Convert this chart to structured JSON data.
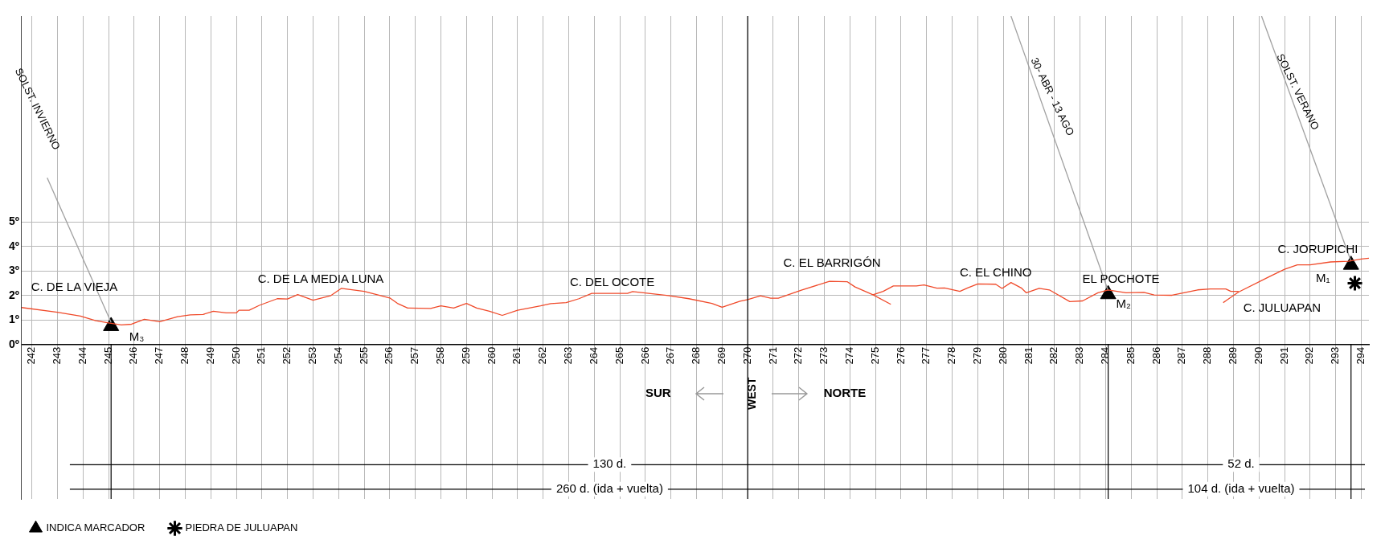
{
  "chart_data": {
    "type": "line",
    "xlim": [
      241.6,
      294.3
    ],
    "ylim": [
      -6.3,
      13.4
    ],
    "xticks": [
      242,
      243,
      244,
      245,
      246,
      247,
      248,
      249,
      250,
      251,
      252,
      253,
      254,
      255,
      256,
      257,
      258,
      259,
      260,
      261,
      262,
      263,
      264,
      265,
      266,
      267,
      268,
      269,
      270,
      271,
      272,
      273,
      274,
      275,
      276,
      277,
      278,
      279,
      280,
      281,
      282,
      283,
      284,
      285,
      286,
      287,
      288,
      289,
      290,
      291,
      292,
      293,
      294
    ],
    "yticks": [
      {
        "value": 0,
        "label": "0º"
      },
      {
        "value": 1,
        "label": "1º"
      },
      {
        "value": 2,
        "label": "2º"
      },
      {
        "value": 3,
        "label": "3º"
      },
      {
        "value": 4,
        "label": "4º"
      },
      {
        "value": 5,
        "label": "5º"
      }
    ],
    "grid": true,
    "legend": "bottom left",
    "series": [
      {
        "color": "#f04a2a",
        "x": [
          241.6,
          243.0,
          243.9,
          244.5,
          245.0,
          245.5,
          245.9,
          246.4,
          247.0,
          247.7,
          248.2,
          248.7,
          249.1,
          249.6,
          250.0,
          250.1,
          250.5,
          250.9,
          251.6,
          252.0,
          252.4,
          253.0,
          253.7,
          254.1,
          255.0,
          256.0,
          256.3,
          256.7,
          257.6,
          258.0,
          258.5,
          259.0,
          259.4,
          259.9,
          260.4,
          261.0,
          261.9,
          262.3,
          262.9,
          263.4,
          263.9,
          265.3,
          265.5,
          266.9,
          267.7,
          268.6,
          269.0,
          269.7,
          270.0,
          270.5,
          270.9,
          271.2,
          272.1,
          273.2,
          273.9,
          274.2,
          274.9,
          275.6
        ],
        "values": [
          1.51,
          1.32,
          1.16,
          0.97,
          0.88,
          0.8,
          0.83,
          1.03,
          0.93,
          1.14,
          1.21,
          1.23,
          1.36,
          1.29,
          1.29,
          1.4,
          1.4,
          1.6,
          1.87,
          1.86,
          2.04,
          1.81,
          2.0,
          2.29,
          2.17,
          1.9,
          1.68,
          1.49,
          1.47,
          1.58,
          1.49,
          1.68,
          1.49,
          1.36,
          1.19,
          1.4,
          1.58,
          1.67,
          1.71,
          1.87,
          2.09,
          2.09,
          2.16,
          2.0,
          1.87,
          1.68,
          1.52,
          1.77,
          1.83,
          1.99,
          1.89,
          1.89,
          2.22,
          2.58,
          2.56,
          2.35,
          2.03,
          1.64
        ]
      },
      {
        "color": "#f04a2a",
        "x": [
          274.9,
          275.3,
          275.7,
          276.6,
          276.9,
          277.4,
          277.7,
          278.3,
          278.6,
          279.0,
          279.7,
          279.95,
          280.3,
          280.7,
          280.9,
          281.4,
          281.8,
          282.6,
          283.1,
          283.7,
          284.1,
          284.8,
          285.5,
          285.9,
          286.6,
          287.6,
          288.1,
          288.7,
          288.9,
          289.2
        ],
        "values": [
          2.03,
          2.17,
          2.39,
          2.39,
          2.43,
          2.3,
          2.31,
          2.17,
          2.31,
          2.47,
          2.46,
          2.29,
          2.53,
          2.31,
          2.11,
          2.29,
          2.23,
          1.75,
          1.78,
          2.11,
          2.23,
          2.11,
          2.13,
          2.02,
          2.01,
          2.23,
          2.27,
          2.27,
          2.17,
          2.17
        ]
      },
      {
        "color": "#f04a2a",
        "x": [
          288.6,
          289.2,
          290.4,
          291.0,
          291.5,
          292.0,
          292.8,
          293.5,
          294.0,
          294.3
        ],
        "values": [
          1.71,
          2.14,
          2.77,
          3.07,
          3.25,
          3.25,
          3.37,
          3.4,
          3.49,
          3.52
        ]
      },
      {
        "color": "#a0a0a0",
        "x": [
          245.1,
          242.6
        ],
        "values": [
          0.9,
          6.8
        ]
      },
      {
        "color": "#a0a0a0",
        "x": [
          284.1,
          280.3
        ],
        "values": [
          2.2,
          13.4
        ]
      },
      {
        "color": "#a0a0a0",
        "x": [
          293.6,
          290.1
        ],
        "values": [
          3.4,
          13.4
        ]
      },
      {
        "type": "scatter",
        "name": "INDICA MARCADOR",
        "marker": "triangle",
        "color": "#000000",
        "x": [
          245.1,
          284.1,
          293.6
        ],
        "values": [
          0.75,
          2.05,
          3.25
        ]
      },
      {
        "type": "scatter",
        "name": "PIEDRA DE JULUAPAN",
        "marker": "cross",
        "color": "#000000",
        "x": [
          293.75
        ],
        "values": [
          2.5
        ]
      }
    ],
    "ref_lines": [
      {
        "axis": "x",
        "value": 270,
        "label": "WEST",
        "color": "#000000"
      },
      {
        "axis": "x",
        "value": 245.1,
        "color": "#000000"
      },
      {
        "axis": "x",
        "value": 284.1,
        "color": "#000000"
      },
      {
        "axis": "x",
        "value": 293.6,
        "color": "#000000"
      },
      {
        "axis": "y",
        "value": -4.9,
        "color": "#000000"
      },
      {
        "axis": "y",
        "value": -5.9,
        "color": "#000000"
      }
    ],
    "annotations": [
      "C. DE LA VIEJA",
      "C. DE LA MEDIA LUNA",
      "C. DEL OCOTE",
      "C. EL BARRIGÓN",
      "C. EL CHINO",
      "EL POCHOTE",
      "C. JULUAPAN",
      "C. JORUPICHI",
      "M₃",
      "M₂",
      "M₁",
      "SOLST. INVIERNO",
      "30- ABR - 13 AGO",
      "SOLST. VERANO",
      "SUR",
      "NORTE",
      "130 d.",
      "52 d.",
      "260 d. (ida + vuelta)",
      "104 d. (ida + vuelta)"
    ]
  }
}
